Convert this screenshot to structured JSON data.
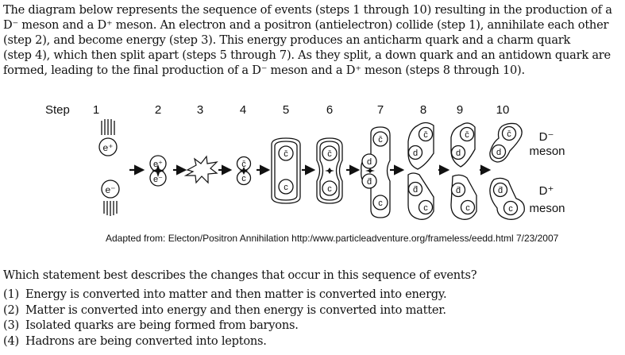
{
  "intro_lines": [
    "The diagram below represents the sequence of events (steps 1 through 10) resulting in the production of a",
    "D⁻ meson and a D⁺ meson.  An electron and a positron (antielectron) collide (step 1), annihilate each other",
    "(step 2), and become energy (step 3).  This energy produces an anticharm quark and a charm quark",
    "(step 4), which then split apart (steps 5 through 7).  As they split, a down quark and an antidown quark are",
    "formed, leading to the final production of a D⁻  meson and a D⁺ meson (steps 8 through 10)."
  ],
  "diagram": {
    "step_label": "Step",
    "step_numbers": [
      "1",
      "2",
      "3",
      "4",
      "5",
      "6",
      "7",
      "8",
      "9",
      "10"
    ],
    "particles": {
      "positron": "e⁺",
      "electron": "e⁻",
      "anticharm": "c̄",
      "charm": "c",
      "down": "d",
      "antidown": "d̄"
    },
    "meson_top": {
      "symbol": "D⁻",
      "word": "meson"
    },
    "meson_bottom": {
      "symbol": "D⁺",
      "word": "meson"
    }
  },
  "credit": "Adapted from: Electon/Positron Annihilation http:/www.particleadventure.org/frameless/eedd.html 7/23/2007",
  "question": "Which statement best describes the changes that occur in this sequence of events?",
  "choices": [
    {
      "num": "(1)",
      "text": "Energy is converted into matter and then matter is converted into energy."
    },
    {
      "num": "(2)",
      "text": "Matter is converted into energy and then energy is converted into matter."
    },
    {
      "num": "(3)",
      "text": "Isolated quarks are being formed from baryons."
    },
    {
      "num": "(4)",
      "text": "Hadrons are being converted into leptons."
    }
  ]
}
